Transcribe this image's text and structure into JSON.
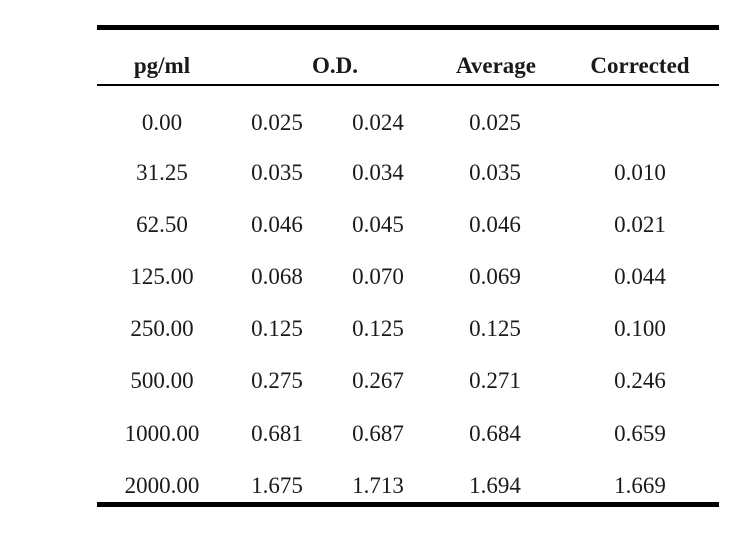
{
  "table": {
    "headers": {
      "concentration": "pg/ml",
      "od": "O.D.",
      "average": "Average",
      "corrected": "Corrected"
    },
    "rows": [
      {
        "concentration": "0.00",
        "od1": "0.025",
        "od2": "0.024",
        "average": "0.025",
        "corrected": ""
      },
      {
        "concentration": "31.25",
        "od1": "0.035",
        "od2": "0.034",
        "average": "0.035",
        "corrected": "0.010"
      },
      {
        "concentration": "62.50",
        "od1": "0.046",
        "od2": "0.045",
        "average": "0.046",
        "corrected": "0.021"
      },
      {
        "concentration": "125.00",
        "od1": "0.068",
        "od2": "0.070",
        "average": "0.069",
        "corrected": "0.044"
      },
      {
        "concentration": "250.00",
        "od1": "0.125",
        "od2": "0.125",
        "average": "0.125",
        "corrected": "0.100"
      },
      {
        "concentration": "500.00",
        "od1": "0.275",
        "od2": "0.267",
        "average": "0.271",
        "corrected": "0.246"
      },
      {
        "concentration": "1000.00",
        "od1": "0.681",
        "od2": "0.687",
        "average": "0.684",
        "corrected": "0.659"
      },
      {
        "concentration": "2000.00",
        "od1": "1.675",
        "od2": "1.713",
        "average": "1.694",
        "corrected": "1.669"
      }
    ]
  }
}
